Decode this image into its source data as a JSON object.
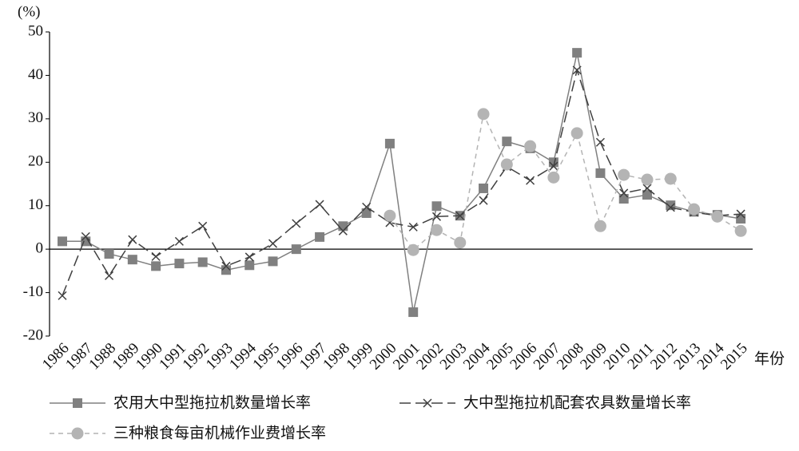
{
  "chart_data": {
    "type": "line",
    "y_label": "(%)",
    "x_label": "年份",
    "categories": [
      "1986",
      "1987",
      "1988",
      "1989",
      "1990",
      "1991",
      "1992",
      "1993",
      "1994",
      "1995",
      "1996",
      "1997",
      "1998",
      "1999",
      "2000",
      "2001",
      "2002",
      "2003",
      "2004",
      "2005",
      "2006",
      "2007",
      "2008",
      "2009",
      "2010",
      "2011",
      "2012",
      "2013",
      "2014",
      "2015"
    ],
    "ylim": [
      -20,
      50
    ],
    "yticks": [
      -20,
      -10,
      0,
      10,
      20,
      30,
      40,
      50
    ],
    "series": [
      {
        "name": "农用大中型拖拉机数量增长率",
        "color": "#808080",
        "marker": "square",
        "line_style": "solid",
        "values": [
          1.8,
          1.8,
          -1.1,
          -2.4,
          -3.9,
          -3.3,
          -3.0,
          -4.8,
          -3.7,
          -2.8,
          0,
          2.8,
          5.3,
          8.3,
          24.3,
          -14.5,
          9.9,
          7.7,
          14.0,
          24.8,
          23.2,
          20.0,
          45.2,
          17.5,
          11.6,
          12.5,
          10.1,
          8.6,
          7.9,
          7.0
        ]
      },
      {
        "name": "大中型拖拉机配套农具数量增长率",
        "color": "#404040",
        "marker": "cross",
        "line_style": "longdash",
        "values": [
          -10.7,
          2.9,
          -6.1,
          2.2,
          -1.7,
          1.8,
          5.3,
          -3.9,
          -1.8,
          1.3,
          5.9,
          10.3,
          4.2,
          9.7,
          6.1,
          5.1,
          7.5,
          7.7,
          11.2,
          19.0,
          15.8,
          19.1,
          41.2,
          24.6,
          12.9,
          14.0,
          9.6,
          8.5,
          7.7,
          8.1
        ]
      },
      {
        "name": "三种粮食每亩机械作业费增长率",
        "color": "#b4b4b4",
        "marker": "circle",
        "line_style": "dash",
        "values": [
          null,
          null,
          null,
          null,
          null,
          null,
          null,
          null,
          null,
          null,
          null,
          null,
          null,
          null,
          7.7,
          -0.2,
          4.4,
          1.5,
          31.1,
          19.5,
          23.7,
          16.5,
          26.7,
          5.3,
          17.1,
          16.0,
          16.2,
          9.2,
          7.5,
          4.2
        ]
      }
    ]
  }
}
